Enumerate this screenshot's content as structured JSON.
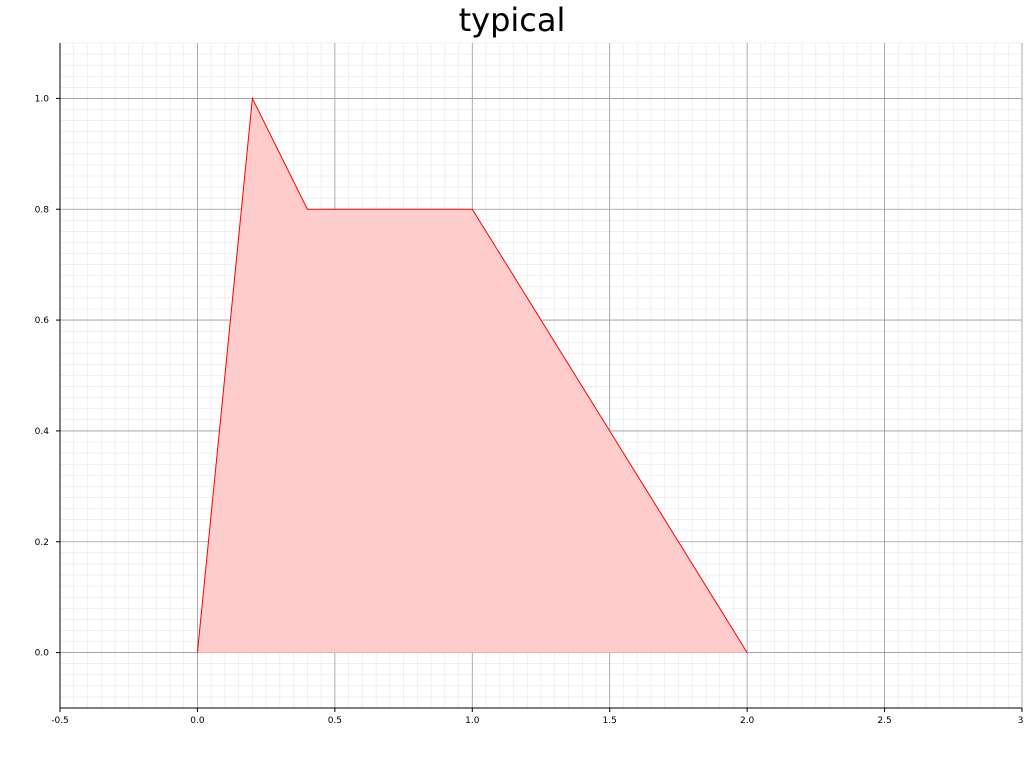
{
  "chart_data": {
    "type": "area",
    "title": "typical",
    "xlabel": "",
    "ylabel": "",
    "xlim": [
      -0.5,
      3.0
    ],
    "ylim": [
      -0.1,
      1.1
    ],
    "x_ticks": [
      -0.5,
      0.0,
      0.5,
      1.0,
      1.5,
      2.0,
      2.5,
      3.0
    ],
    "x_tick_labels": [
      "-0.5",
      "0.0",
      "0.5",
      "1.0",
      "1.5",
      "2.0",
      "2.5",
      "3."
    ],
    "y_ticks": [
      0.0,
      0.2,
      0.4,
      0.6,
      0.8,
      1.0
    ],
    "y_tick_labels": [
      "0.0",
      "0.2",
      "0.4",
      "0.6",
      "0.8",
      "1.0"
    ],
    "grid": true,
    "minor_grid": true,
    "series": [
      {
        "x": [
          0.0,
          0.2,
          0.4,
          1.0,
          2.0
        ],
        "y": [
          0.0,
          1.0,
          0.8,
          0.8,
          0.0
        ],
        "color": "#ff0000",
        "fill": "#ffcccc"
      }
    ]
  }
}
